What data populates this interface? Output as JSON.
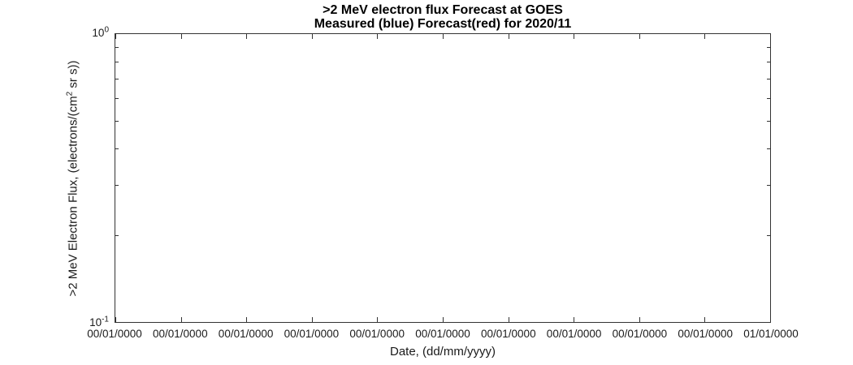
{
  "figure": {
    "background": "#ffffff",
    "axis_color": "#333333",
    "text_color": "#1a1a1a",
    "title_color": "#000000"
  },
  "chart_data": {
    "type": "line",
    "title": ">2 MeV electron flux Forecast at GOES",
    "subtitle": "Measured (blue) Forecast(red) for 2020/11",
    "xlabel": "Date, (dd/mm/yyyy)",
    "ylabel": {
      "prefix": ">2 MeV Electron Flux, (electrons/(cm",
      "superscript": "2",
      "suffix": " sr s))"
    },
    "x_axis": {
      "tick_labels": [
        "00/01/0000",
        "00/01/0000",
        "00/01/0000",
        "00/01/0000",
        "00/01/0000",
        "00/01/0000",
        "00/01/0000",
        "00/01/0000",
        "00/01/0000",
        "00/01/0000",
        "01/01/0000"
      ]
    },
    "y_axis": {
      "scale": "log",
      "lim": [
        0.1,
        1.0
      ],
      "major_ticks": [
        {
          "base": "10",
          "exponent": "0",
          "value": 1.0
        },
        {
          "base": "10",
          "exponent": "-1",
          "value": 0.1
        }
      ],
      "minor_tick_values": [
        0.2,
        0.3,
        0.4,
        0.5,
        0.6,
        0.7,
        0.8,
        0.9
      ]
    },
    "legend_in_title": true,
    "forecast_month": "2020/11",
    "series": [
      {
        "name": "Measured",
        "color_name": "blue",
        "color": "#0000ff",
        "points": []
      },
      {
        "name": "Forecast",
        "color_name": "red",
        "color": "#ff0000",
        "points": []
      }
    ],
    "grid": false
  }
}
